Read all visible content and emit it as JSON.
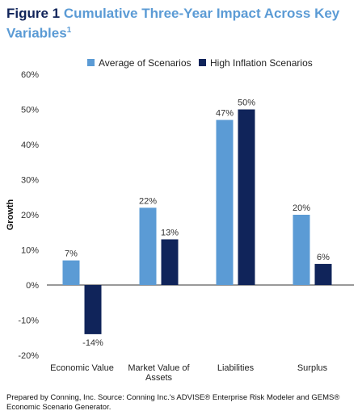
{
  "figure": {
    "label": "Figure 1",
    "title": "Cumulative Three-Year Impact Across Key Variables",
    "footnote_mark": "1"
  },
  "source_note": "Prepared by Conning, Inc. Source: Conning Inc.'s ADVISE® Enterprise Risk Modeler and GEMS® Economic Scenario Generator.",
  "chart_data": {
    "type": "bar",
    "ylabel": "Growth",
    "xlabel": "",
    "ylim": [
      -20,
      60
    ],
    "yticks": [
      -20,
      -10,
      0,
      10,
      20,
      30,
      40,
      50,
      60
    ],
    "ytick_labels": [
      "-20%",
      "-10%",
      "0%",
      "10%",
      "20%",
      "30%",
      "40%",
      "50%",
      "60%"
    ],
    "grid": false,
    "legend_position": "top",
    "categories": [
      [
        "Economic Value"
      ],
      [
        "Market Value of",
        "Assets"
      ],
      [
        "Liabilities"
      ],
      [
        "Surplus"
      ]
    ],
    "series": [
      {
        "name": "Average of Scenarios",
        "color": "#5b9bd5",
        "values": [
          7,
          22,
          47,
          20
        ],
        "labels": [
          "7%",
          "22%",
          "47%",
          "20%"
        ]
      },
      {
        "name": "High Inflation Scenarios",
        "color": "#10245a",
        "values": [
          -14,
          13,
          50,
          6
        ],
        "labels": [
          "-14%",
          "13%",
          "50%",
          "6%"
        ]
      }
    ]
  }
}
